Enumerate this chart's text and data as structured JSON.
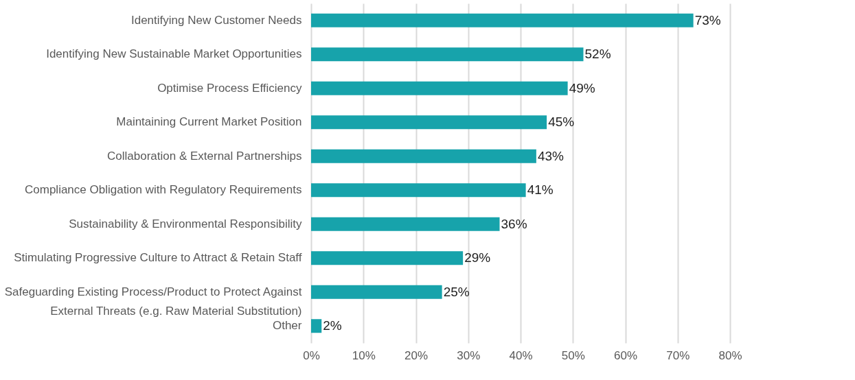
{
  "chart_data": {
    "type": "bar",
    "orientation": "horizontal",
    "categories": [
      "Identifying New Customer Needs",
      "Identifying New Sustainable Market Opportunities",
      "Optimise Process Efficiency",
      "Maintaining Current Market Position",
      "Collaboration & External Partnerships",
      "Compliance Obligation with Regulatory Requirements",
      "Sustainability & Environmental Responsibility",
      "Stimulating Progressive Culture to Attract & Retain Staff",
      "Safeguarding Existing Process/Product to Protect Against External Threats (e.g. Raw Material Substitution)",
      "Other"
    ],
    "values": [
      73,
      52,
      49,
      45,
      43,
      41,
      36,
      29,
      25,
      2
    ],
    "value_labels": [
      "73%",
      "52%",
      "49%",
      "45%",
      "43%",
      "41%",
      "36%",
      "29%",
      "25%",
      "2%"
    ],
    "color": "#17a3ab",
    "xlim": [
      0,
      80
    ],
    "xticks": [
      {
        "value": 0,
        "label": "0%"
      },
      {
        "value": 10,
        "label": "10%"
      },
      {
        "value": 20,
        "label": "20%"
      },
      {
        "value": 30,
        "label": "30%"
      },
      {
        "value": 40,
        "label": "40%"
      },
      {
        "value": 50,
        "label": "50%"
      },
      {
        "value": 60,
        "label": "60%"
      },
      {
        "value": 70,
        "label": "70%"
      },
      {
        "value": 80,
        "label": "80%"
      }
    ],
    "grid": "x"
  }
}
